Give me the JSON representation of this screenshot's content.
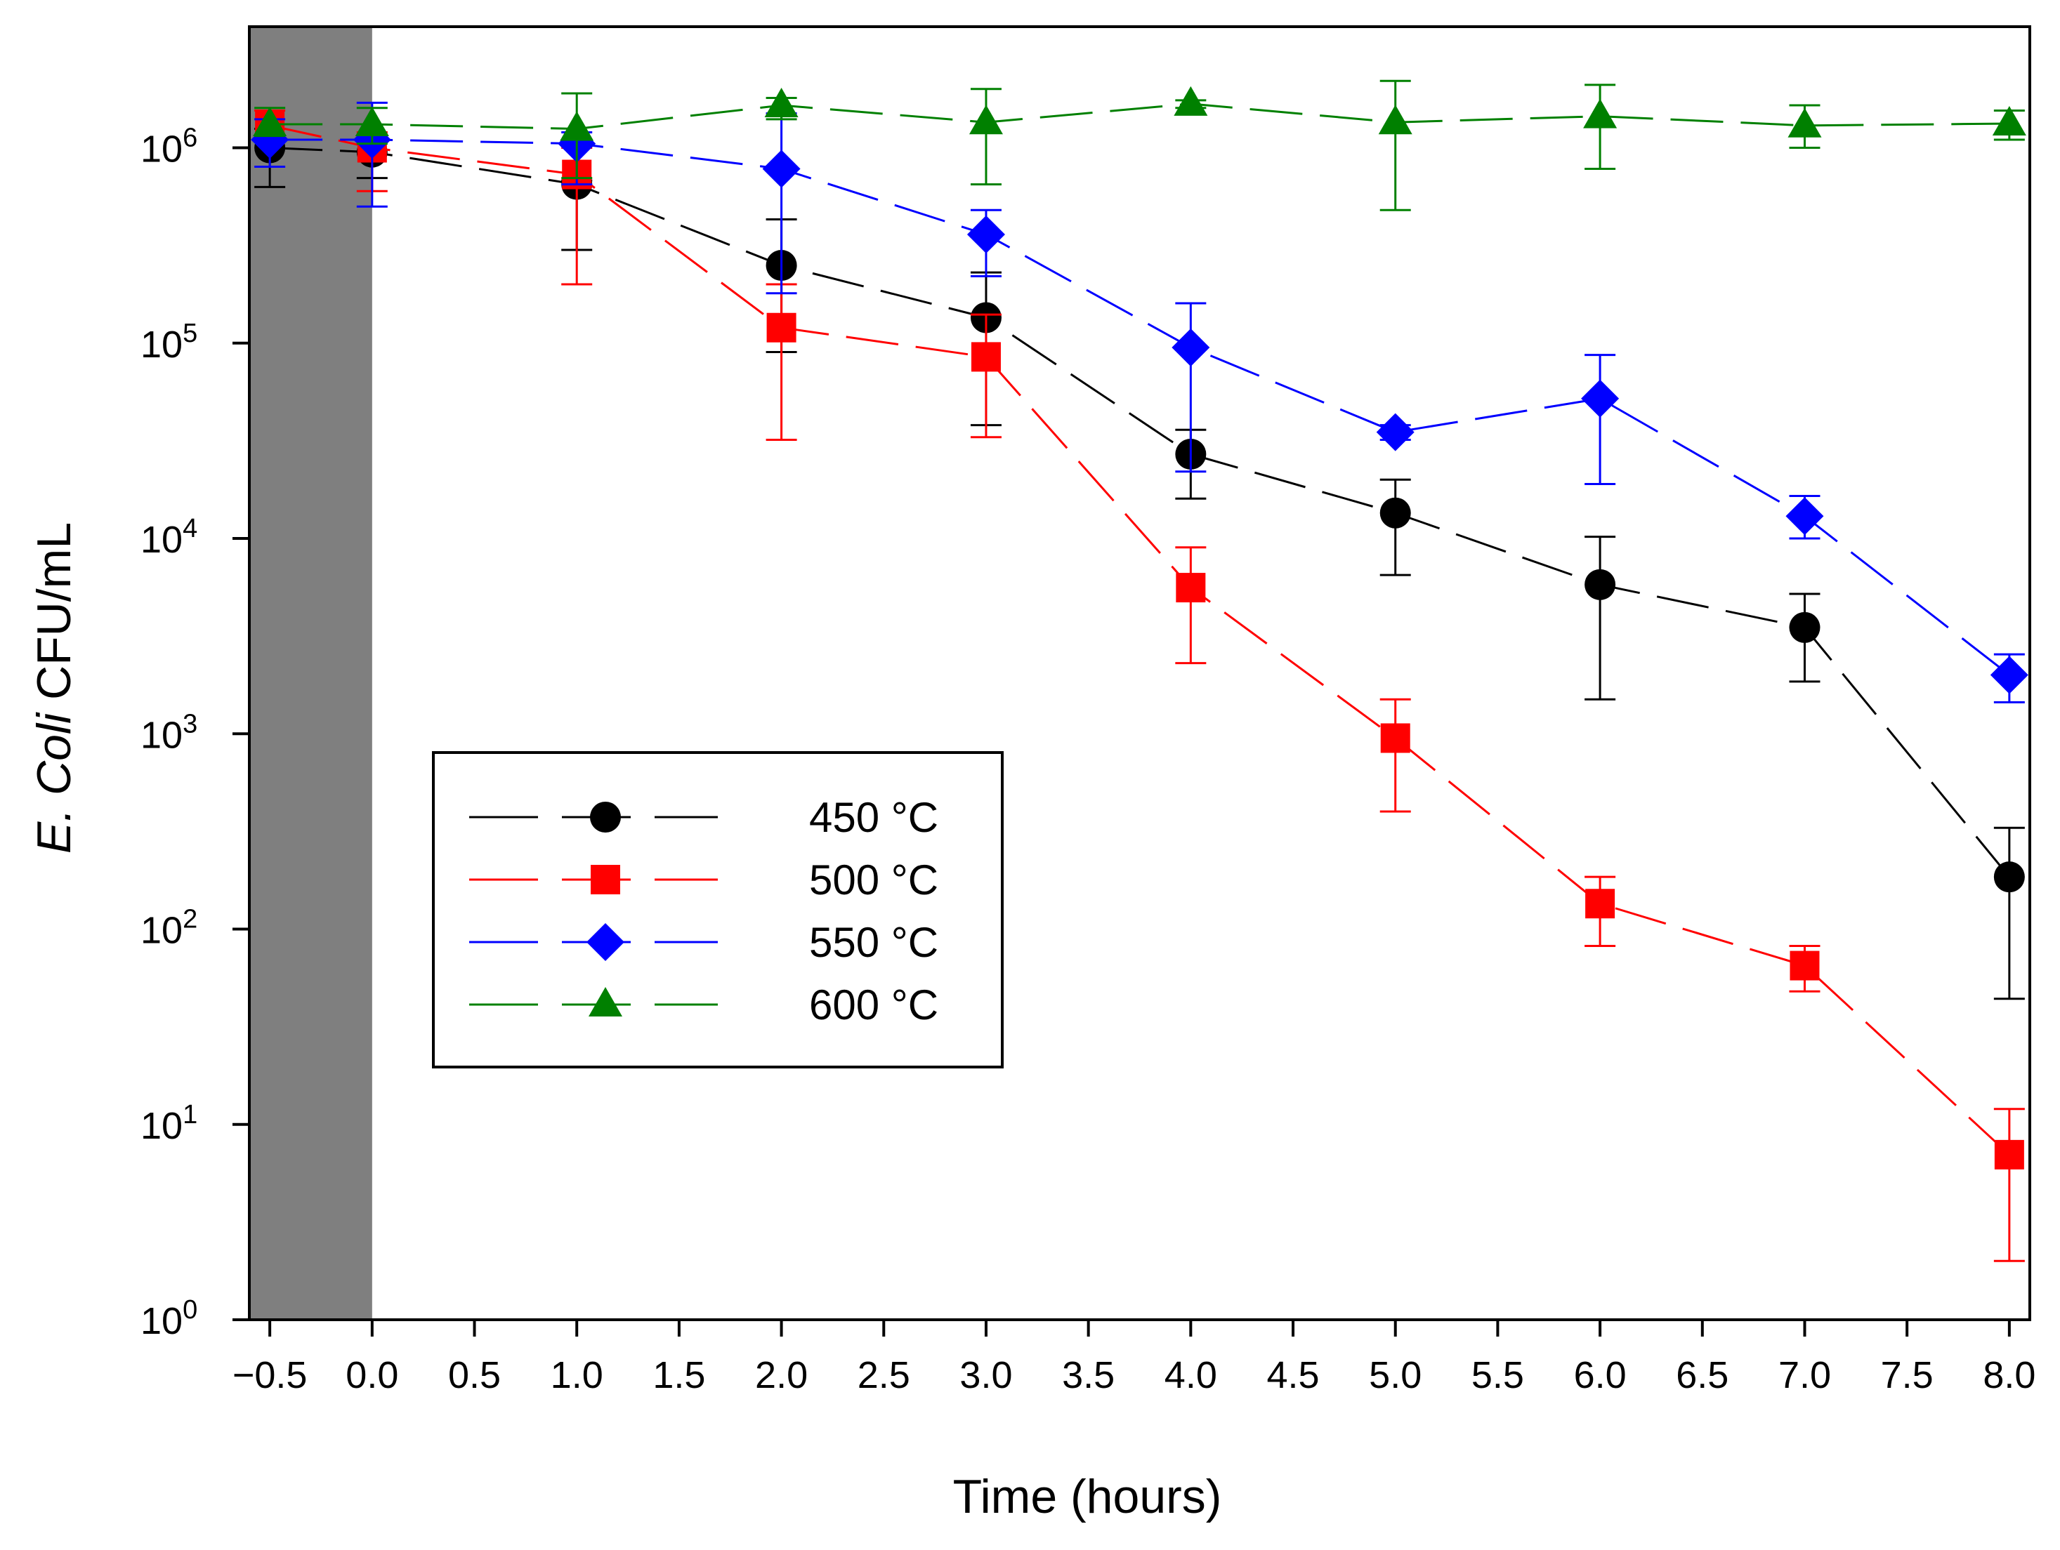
{
  "chart_data": {
    "type": "line",
    "title": "",
    "xlabel": "Time (hours)",
    "ylabel_italic": "E. Coli",
    "ylabel_rest": " CFU/mL",
    "xlim": [
      -0.6,
      8.1
    ],
    "ylim_log10": [
      0,
      6.62
    ],
    "x_ticks": [
      -0.5,
      0.0,
      0.5,
      1.0,
      1.5,
      2.0,
      2.5,
      3.0,
      3.5,
      4.0,
      4.5,
      5.0,
      5.5,
      6.0,
      6.5,
      7.0,
      7.5,
      8.0
    ],
    "x_tick_labels": [
      "−0.5",
      "0.0",
      "0.5",
      "1.0",
      "1.5",
      "2.0",
      "2.5",
      "3.0",
      "3.5",
      "4.0",
      "4.5",
      "5.0",
      "5.5",
      "6.0",
      "6.5",
      "7.0",
      "7.5",
      "8.0"
    ],
    "y_ticks": [
      {
        "base": "10",
        "exp": "0"
      },
      {
        "base": "10",
        "exp": "1"
      },
      {
        "base": "10",
        "exp": "2"
      },
      {
        "base": "10",
        "exp": "3"
      },
      {
        "base": "10",
        "exp": "4"
      },
      {
        "base": "10",
        "exp": "5"
      },
      {
        "base": "10",
        "exp": "6"
      }
    ],
    "shaded_region": {
      "x_from": -0.6,
      "x_to": 0.0,
      "color": "#7f7f7f"
    },
    "legend_position": "lower-left",
    "series": [
      {
        "name": "450 °C",
        "color": "#000000",
        "marker": "circle",
        "x": [
          -0.5,
          0,
          1,
          2,
          3,
          4,
          5,
          6,
          7,
          8
        ],
        "y": [
          1000000,
          950000,
          650000,
          250000,
          135000,
          27000,
          13500,
          5800,
          3500,
          185
        ],
        "err_low": [
          630000,
          700000,
          300000,
          90000,
          38000,
          16000,
          6500,
          1500,
          1850,
          44
        ],
        "err_high": [
          1250000,
          1150000,
          680000,
          430000,
          230000,
          36000,
          20000,
          10200,
          5200,
          330
        ]
      },
      {
        "name": "500 °C",
        "color": "#ff0000",
        "marker": "square",
        "x": [
          -0.5,
          0,
          1,
          2,
          3,
          4,
          5,
          6,
          7,
          8
        ],
        "y": [
          1300000,
          1000000,
          730000,
          120000,
          85000,
          5600,
          950,
          135,
          65,
          7
        ],
        "err_low": [
          1100000,
          600000,
          200000,
          32000,
          33000,
          2300,
          400,
          82,
          48,
          2
        ],
        "err_high": [
          1550000,
          1200000,
          1000000,
          200000,
          140000,
          9000,
          1500,
          185,
          82,
          12
        ]
      },
      {
        "name": "550 °C",
        "color": "#0000ff",
        "marker": "diamond",
        "x": [
          -0.5,
          0,
          1,
          2,
          3,
          4,
          5,
          6,
          7,
          8
        ],
        "y": [
          1100000,
          1100000,
          1050000,
          780000,
          360000,
          95000,
          35000,
          52000,
          13000,
          2000
        ],
        "err_low": [
          800000,
          500000,
          650000,
          180000,
          220000,
          22000,
          32000,
          19000,
          10000,
          1450
        ],
        "err_high": [
          1400000,
          1700000,
          1200000,
          1500000,
          480000,
          160000,
          38000,
          87000,
          16500,
          2550
        ]
      },
      {
        "name": "600 °C",
        "color": "#008000",
        "marker": "triangle",
        "x": [
          -0.5,
          0,
          1,
          2,
          3,
          4,
          5,
          6,
          7,
          8
        ],
        "y": [
          1320000,
          1320000,
          1250000,
          1650000,
          1350000,
          1680000,
          1350000,
          1450000,
          1300000,
          1330000
        ],
        "err_low": [
          1150000,
          1050000,
          700000,
          1400000,
          650000,
          1600000,
          480000,
          780000,
          1000000,
          1100000
        ],
        "err_high": [
          1600000,
          1600000,
          1900000,
          1800000,
          2000000,
          1750000,
          2200000,
          2100000,
          1650000,
          1550000
        ]
      }
    ]
  }
}
